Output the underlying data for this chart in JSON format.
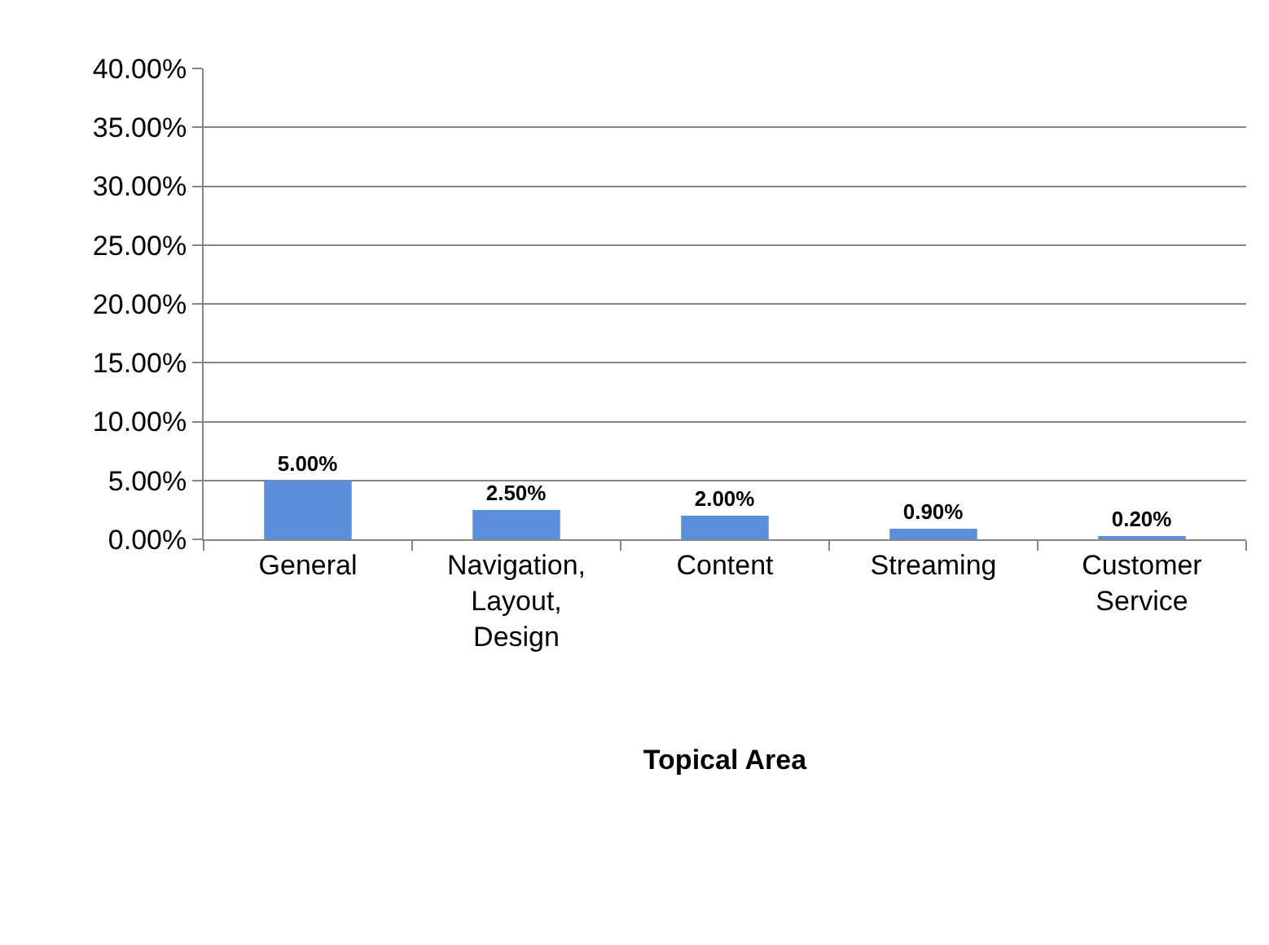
{
  "chart_data": {
    "type": "bar",
    "xlabel": "Topical Area",
    "categories": [
      "General",
      "Navigation, Layout, Design",
      "Content",
      "Streaming",
      "Customer Service"
    ],
    "values": [
      5.0,
      2.5,
      2.0,
      0.9,
      0.2
    ],
    "value_labels": [
      "5.00%",
      "2.50%",
      "2.00%",
      "0.90%",
      "0.20%"
    ],
    "color": "#5b8fd9",
    "ylim": [
      0,
      40
    ],
    "yticks": [
      {
        "value": 0,
        "label": "0.00%"
      },
      {
        "value": 5,
        "label": "5.00%"
      },
      {
        "value": 10,
        "label": "10.00%"
      },
      {
        "value": 15,
        "label": "15.00%"
      },
      {
        "value": 20,
        "label": "20.00%"
      },
      {
        "value": 25,
        "label": "25.00%"
      },
      {
        "value": 30,
        "label": "30.00%"
      },
      {
        "value": 35,
        "label": "35.00%"
      },
      {
        "value": 40,
        "label": "40.00%"
      }
    ],
    "grid": "y"
  }
}
